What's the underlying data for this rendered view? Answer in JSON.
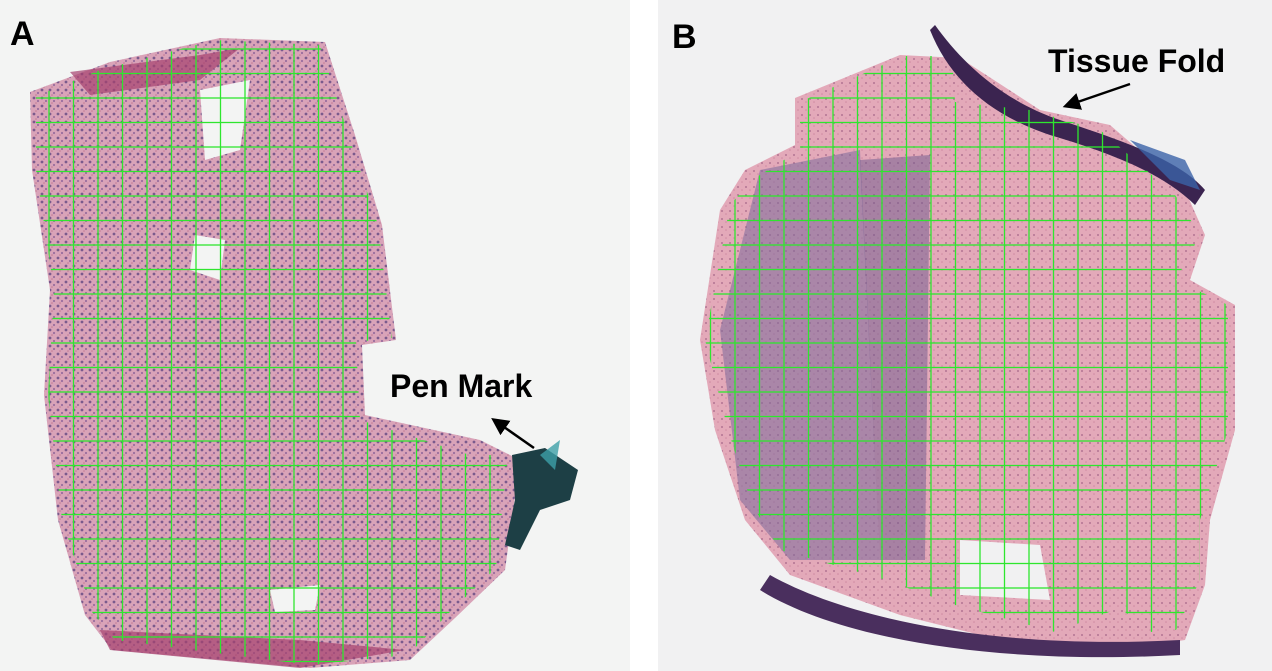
{
  "panels": [
    {
      "label": "A",
      "annotation": "Pen Mark"
    },
    {
      "label": "B",
      "annotation": "Tissue Fold"
    }
  ]
}
